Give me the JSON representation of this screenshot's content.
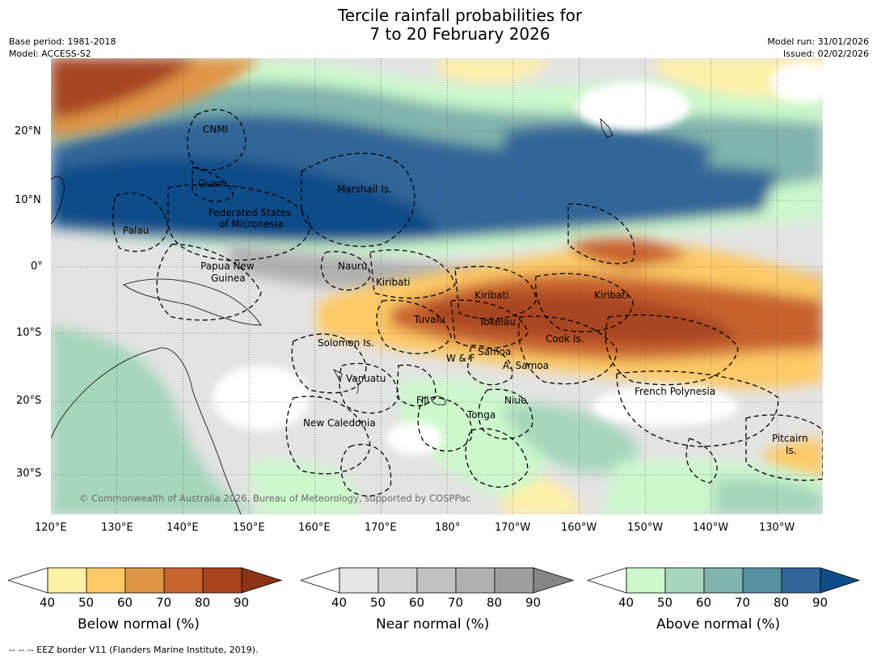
{
  "title": {
    "line1": "Tercile rainfall probabilities for",
    "line2": "7 to 20 February 2026"
  },
  "meta": {
    "base_period": "Base period: 1981-2018",
    "model": "Model: ACCESS-S2",
    "model_run": "Model run: 31/01/2026",
    "issued": "Issued: 02/02/2026"
  },
  "axes": {
    "lon_ticks": [
      "120°E",
      "130°E",
      "140°E",
      "150°E",
      "160°E",
      "170°E",
      "180°",
      "170°W",
      "160°W",
      "150°W",
      "140°W",
      "130°W"
    ],
    "lat_ticks": [
      "20°N",
      "10°N",
      "0°",
      "10°S",
      "20°S",
      "30°S"
    ]
  },
  "regions": [
    {
      "name": "CNMI"
    },
    {
      "name": "Guam"
    },
    {
      "name": "Marshall Is."
    },
    {
      "name": "Federated States"
    },
    {
      "name": "of Micronesia"
    },
    {
      "name": "Palau"
    },
    {
      "name": "Papua New"
    },
    {
      "name": "Guinea"
    },
    {
      "name": "Nauru"
    },
    {
      "name": "Kiribati"
    },
    {
      "name": "Kiribati"
    },
    {
      "name": "Kiribati"
    },
    {
      "name": "Tuvalu"
    },
    {
      "name": "Tokelau"
    },
    {
      "name": "Cook Is."
    },
    {
      "name": "Solomon Is."
    },
    {
      "name": "Samoa"
    },
    {
      "name": "W & F"
    },
    {
      "name": "A. Samoa"
    },
    {
      "name": "Vanuatu"
    },
    {
      "name": "Fiji"
    },
    {
      "name": "Niue"
    },
    {
      "name": "French Polynesia"
    },
    {
      "name": "Tonga"
    },
    {
      "name": "New Caledonia"
    },
    {
      "name": "Pitcairn"
    },
    {
      "name": "Is."
    }
  ],
  "copyright": "© Commonwealth of Australia 2026, Bureau of Meteorology, supported by COSPPac",
  "colorbars": [
    {
      "label": "Below normal (%)",
      "ticks": [
        "40",
        "50",
        "60",
        "70",
        "80",
        "90"
      ],
      "colors": [
        "#ffffff",
        "#fff0a8",
        "#fdc966",
        "#e09446",
        "#c8642e",
        "#a84420",
        "#8c3316"
      ]
    },
    {
      "label": "Near normal (%)",
      "ticks": [
        "40",
        "50",
        "60",
        "70",
        "80",
        "90"
      ],
      "colors": [
        "#ffffff",
        "#e6e6e6",
        "#d4d4d4",
        "#c2c2c2",
        "#b0b0b0",
        "#9e9e9e",
        "#858585"
      ]
    },
    {
      "label": "Above normal (%)",
      "ticks": [
        "40",
        "50",
        "60",
        "70",
        "80",
        "90"
      ],
      "colors": [
        "#ffffff",
        "#ccf8cc",
        "#a6d6bb",
        "#80b4ad",
        "#5891a0",
        "#336698",
        "#0f4c89"
      ]
    }
  ],
  "footer": "--  --  -- EEZ border V11 (Flanders Marine Institute, 2019)."
}
